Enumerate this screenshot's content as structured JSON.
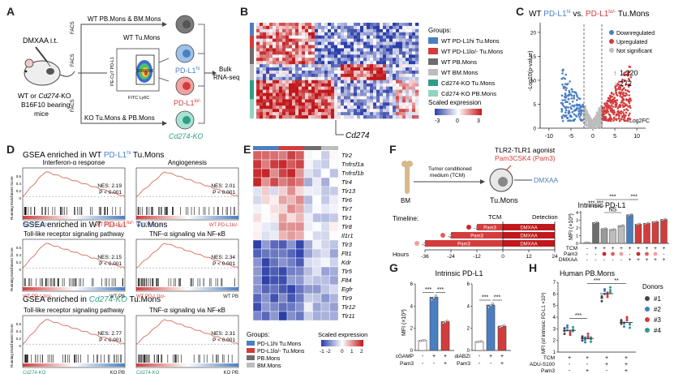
{
  "colors": {
    "blue": "#4a7fc1",
    "red": "#d33c3c",
    "darkgray": "#6d6d6d",
    "lightgray": "#bdbdbd",
    "teal": "#2e9e86",
    "tealLight": "#8fd4c0",
    "redLight": "#f08a8a"
  },
  "panel_labels": {
    "A": "A",
    "B": "B",
    "C": "C",
    "D": "D",
    "E": "E",
    "F": "F",
    "G": "G",
    "H": "H"
  },
  "A": {
    "mouse_label_1": "WT or ",
    "mouse_label_1b": "Cd274",
    "mouse_label_1c": "-KO",
    "mouse_label_2": "B16F10 bearing",
    "mouse_label_3": "mice",
    "treatment": "DMXAA i.t.",
    "top_pop": "WT PB.Mons & BM.Mons",
    "mid_pop": "WT Tu.Mons",
    "bottom_pop": "KO Tu.Mons & PB.Mons",
    "facs": "FACS",
    "yaxis": "PE-Cy7 PD-L1",
    "xaxis": "FITC Ly6C",
    "hi": "PD-L1",
    "hi_sup": "hi",
    "lo": "PD-L1",
    "lo_sup": "lo/-",
    "ko": "Cd274-KO",
    "bulk_1": "Bulk",
    "bulk_2": "RNA-seq"
  },
  "B": {
    "groups_title": "Groups:",
    "legend": [
      {
        "label": "WT PD-L1hi Tu.Mons",
        "color": "#4a7fc1"
      },
      {
        "label": "WT PD-L1lo/- Tu.Mons",
        "color": "#d33c3c"
      },
      {
        "label": "WT PB.Mons",
        "color": "#6d6d6d"
      },
      {
        "label": "WT BM.Mons",
        "color": "#bdbdbd"
      },
      {
        "label": "Cd274-KO Tu.Mons",
        "color": "#2e9e86"
      },
      {
        "label": "Cd274-KO PB.Mons",
        "color": "#8fd4c0"
      }
    ],
    "scale_title": "Scaled expression",
    "scale_ticks": [
      "-3",
      "0",
      "3"
    ],
    "gene": "Cd274"
  },
  "C": {
    "title_a": "WT ",
    "title_b": "PD-L1",
    "title_b_sup": "hi",
    "title_c": " vs. ",
    "title_d": "PD-L1",
    "title_d_sup": "lo/-",
    "title_e": " Tu.Mons",
    "ylabel": "-Log10(p-value)",
    "xlabel": "Log2FC",
    "xticks": [
      "-10",
      "-5",
      "0",
      "5",
      "10"
    ],
    "yticks": [
      "0",
      "5",
      "10",
      "15",
      "20"
    ],
    "legend": [
      "Downregulated",
      "Upregulated",
      "Not significant"
    ],
    "up_count": "1,220",
    "down_count": "272"
  },
  "D": {
    "title1_a": "GSEA enriched in WT ",
    "title1_b": "PD-L1",
    "title1_sup": "hi",
    "title1_c": " Tu.Mons",
    "title2_a": "GSEA enriched in WT ",
    "title2_b": "PD-L1",
    "title2_sup": "lo/-",
    "title2_c": " Tu.Mons",
    "title3_a": "GSEA enriched in ",
    "title3_b": "Cd274-KO",
    "title3_c": " Tu.Mons",
    "ylabel": "Running Enrichment Score",
    "plots": [
      {
        "name": "Interferon-α response",
        "nes": "NES: 2.19",
        "p": "P < 0.001",
        "left": "WT PD-L1hi",
        "right": "WT PD-L1lo/-"
      },
      {
        "name": "Angiogenesis",
        "nes": "NES: 2.01",
        "p": "P < 0.001",
        "left": "WT PD-L1hi",
        "right": "WT PD-L1lo/-"
      },
      {
        "name": "Toll-like receptor signaling pathway",
        "nes": "NES: 2.15",
        "p": "P < 0.001",
        "left": "WT PD-L1lo/-",
        "right": "WT PB"
      },
      {
        "name": "TNF-α signaling via NF-κB",
        "nes": "NES: 2.34",
        "p": "P < 0.001",
        "left": "WT PD-L1lo/-",
        "right": "WT PB"
      },
      {
        "name": "Toll-like receptor signaling pathway",
        "nes": "NES: 2.77",
        "p": "P < 0.001",
        "left": "Cd274-KO",
        "right": "KO PB"
      },
      {
        "name": "TNF-α signaling via NF-κB",
        "nes": "NES: 2.31",
        "p": "P < 0.001",
        "left": "Cd274-KO",
        "right": "KO PB"
      }
    ],
    "yticks": [
      "0.6",
      "0.4",
      "0.2",
      "0"
    ]
  },
  "E": {
    "genes": [
      "Tlr2",
      "Tnfrsf1a",
      "Tnfrsf1b",
      "Tlr4",
      "Tlr13",
      "Tlr6",
      "Tlr7",
      "Tlr1",
      "Tlr8",
      "Il1r1",
      "Tlr3",
      "Flt1",
      "Kdr",
      "Tlr5",
      "Flt4",
      "Egfr",
      "Tlr9",
      "Tlr12",
      "Tlr11"
    ],
    "groups_title": "Groups:",
    "legend": [
      {
        "label": "PD-L1hi Tu.Mons",
        "color": "#4a7fc1"
      },
      {
        "label": "PD-L1lo/- Tu.Mons",
        "color": "#d33c3c"
      },
      {
        "label": "PB.Mons",
        "color": "#6d6d6d"
      },
      {
        "label": "BM.Mons",
        "color": "#bdbdbd"
      }
    ],
    "scale_title": "Scaled expression",
    "scale_ticks": [
      "-1",
      "-2",
      "0",
      "1",
      "2"
    ]
  },
  "F": {
    "agonist_1": "TLR2-TLR1 agonist",
    "agonist_2": "Pam3CSK4 (Pam3)",
    "tcm_1": "Tumor conditioned",
    "tcm_2": "medium (TCM)",
    "bm": "BM",
    "tu": "Tu.Mons",
    "dmxaa": "DMXAA",
    "timeline": "Timeline:",
    "tcm": "TCM",
    "detection": "Detection",
    "rows": [
      {
        "time": "-12 h",
        "label": "Pam3"
      },
      {
        "time": "-24 h",
        "label": "Pam3"
      },
      {
        "time": "-36 h",
        "label": "Pam3"
      }
    ],
    "hours_label": "Hours",
    "hours": [
      "-36",
      "-24",
      "-12",
      "0",
      "12",
      "24"
    ],
    "chart_title": "Intrinsic PD-L1",
    "ylabel": "MFI (×10³)",
    "yticks": [
      "0",
      "1",
      "2",
      "3",
      "4"
    ],
    "row_labels": [
      "TCM",
      "Pam3",
      "DMXAA"
    ],
    "sig": [
      "***",
      "***",
      "NS",
      "***",
      "***"
    ]
  },
  "G": {
    "title": "Intrinsic PD-L1",
    "ylabel": "MFI (×10³)",
    "yticks": [
      "0",
      "2",
      "4",
      "6"
    ],
    "left_rows": [
      "cGAMP",
      "Pam3"
    ],
    "right_rows": [
      "diABZI",
      "Pam3"
    ],
    "sig": "***"
  },
  "H": {
    "title": "Human PB.Mons",
    "ylabel": "MFI (of intrinsic PD-L1 ×10³)",
    "yticks": [
      "1",
      "2",
      "3",
      "4",
      "5",
      "6",
      "7"
    ],
    "rows": [
      "TCM",
      "ADU-S100",
      "Pam3"
    ],
    "donors_title": "Donors",
    "donors": [
      {
        "label": "#1",
        "color": "#444444"
      },
      {
        "label": "#2",
        "color": "#3a7fc1"
      },
      {
        "label": "#3",
        "color": "#d33c3c"
      },
      {
        "label": "#4",
        "color": "#2e9e86"
      }
    ],
    "sig": [
      "***",
      "***",
      "**"
    ]
  },
  "chart_data": [
    {
      "type": "bar",
      "title": "Intrinsic PD-L1 (Panel F)",
      "ylabel": "MFI (×10³)",
      "ylim": [
        0,
        4.2
      ],
      "categories": [
        "1",
        "2",
        "3",
        "4",
        "5",
        "6",
        "7",
        "8",
        "9",
        "10"
      ],
      "series": [
        {
          "name": "MFI",
          "values": [
            0.1,
            2.7,
            1.9,
            1.8,
            2.3,
            3.7,
            2.5,
            2.6,
            2.8,
            3.1
          ]
        }
      ],
      "colors": [
        "#ffffff",
        "#6d6d6d",
        "#9a9a9a",
        "#bdbdbd",
        "#bdbdbd",
        "#4a7fc1",
        "#d33c3c",
        "#d33c3c",
        "#d33c3c",
        "#d33c3c"
      ],
      "TCM": [
        "-",
        "+",
        "+",
        "+",
        "+",
        "+",
        "+",
        "+",
        "+",
        "+"
      ],
      "Pam3": [
        "-",
        "-",
        "dark",
        "mid",
        "light",
        "-",
        "dark",
        "mid",
        "light",
        "-"
      ],
      "DMXAA": [
        "-",
        "-",
        "-",
        "-",
        "-",
        "+",
        "+",
        "+",
        "+",
        "+"
      ]
    },
    {
      "type": "bar",
      "title": "Intrinsic PD-L1 (Panel G, cGAMP)",
      "ylabel": "MFI (×10³)",
      "ylim": [
        0,
        6
      ],
      "categories": [
        "-/-",
        "+/-",
        "+/+"
      ],
      "series": [
        {
          "name": "MFI",
          "values": [
            0.9,
            4.8,
            2.6
          ]
        }
      ],
      "cGAMP": [
        "-",
        "+",
        "+"
      ],
      "Pam3": [
        "-",
        "-",
        "+"
      ]
    },
    {
      "type": "bar",
      "title": "Intrinsic PD-L1 (Panel G, diABZI)",
      "ylabel": "MFI (×10³)",
      "ylim": [
        0,
        6
      ],
      "categories": [
        "-/-",
        "+/-",
        "+/+"
      ],
      "series": [
        {
          "name": "MFI",
          "values": [
            0.8,
            4.1,
            2.2
          ]
        }
      ],
      "diABZI": [
        "-",
        "+",
        "+"
      ],
      "Pam3": [
        "-",
        "-",
        "+"
      ]
    },
    {
      "type": "scatter",
      "title": "Human PB.Mons",
      "ylabel": "MFI (of intrinsic PD-L1 ×10³)",
      "ylim": [
        1,
        7
      ],
      "categories": [
        "TCM",
        "TCM+Pam3",
        "TCM+ADU-S100",
        "TCM+ADU-S100+Pam3"
      ],
      "series": [
        {
          "name": "#1",
          "values": [
            2.8,
            2.2,
            5.6,
            3.6
          ]
        },
        {
          "name": "#2",
          "values": [
            3.1,
            2.0,
            6.2,
            3.4
          ]
        },
        {
          "name": "#3",
          "values": [
            2.6,
            2.4,
            5.9,
            3.9
          ]
        },
        {
          "name": "#4",
          "values": [
            3.0,
            2.1,
            6.4,
            3.3
          ]
        }
      ]
    }
  ]
}
